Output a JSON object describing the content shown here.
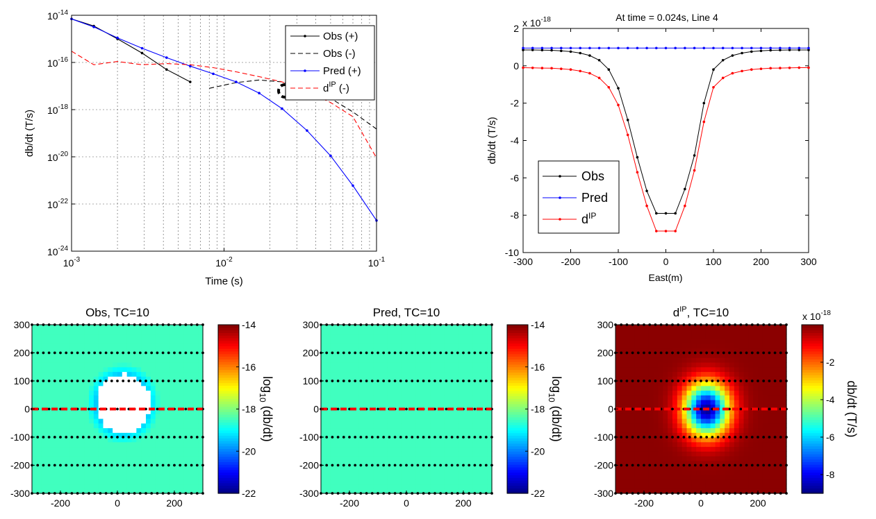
{
  "chart_data": [
    {
      "id": "decay",
      "type": "line",
      "xlabel": "Time (s)",
      "ylabel": "db/dt (T/s)",
      "xscale": "log",
      "yscale": "log",
      "xlim": [
        0.001,
        0.1
      ],
      "ylim": [
        1e-24,
        1e-14
      ],
      "x_ticks": [
        {
          "v": 0.001,
          "base": "10",
          "exp": "-3"
        },
        {
          "v": 0.01,
          "base": "10",
          "exp": "-2"
        },
        {
          "v": 0.1,
          "base": "10",
          "exp": "-1"
        }
      ],
      "y_ticks": [
        {
          "v": 1e-14,
          "base": "10",
          "exp": "-14"
        },
        {
          "v": 1e-16,
          "base": "10",
          "exp": "-16"
        },
        {
          "v": 1e-18,
          "base": "10",
          "exp": "-18"
        },
        {
          "v": 1e-20,
          "base": "10",
          "exp": "-20"
        },
        {
          "v": 1e-22,
          "base": "10",
          "exp": "-22"
        },
        {
          "v": 1e-24,
          "base": "10",
          "exp": "-24"
        }
      ],
      "grid": true,
      "legend_position": "top-right",
      "series": [
        {
          "name": "Obs (+)",
          "color": "#000000",
          "style": "solid",
          "marker": true,
          "points": [
            [
              0.001,
              7e-15
            ],
            [
              0.0014,
              3.5e-15
            ],
            [
              0.002,
              1e-15
            ],
            [
              0.0029,
              2.5e-16
            ],
            [
              0.0042,
              5e-17
            ],
            [
              0.006,
              1.5e-17
            ]
          ]
        },
        {
          "name": "Obs (-)",
          "color": "#000000",
          "style": "dashed",
          "marker": false,
          "points": [
            [
              0.008,
              8e-18
            ],
            [
              0.012,
              1.4e-17
            ],
            [
              0.017,
              1.8e-17
            ],
            [
              0.024,
              1.5e-17
            ],
            [
              0.035,
              8e-18
            ],
            [
              0.05,
              3e-18
            ],
            [
              0.07,
              8e-19
            ],
            [
              0.1,
              1.5e-19
            ]
          ]
        },
        {
          "name": "Pred (+)",
          "color": "#0000ff",
          "style": "solid",
          "marker": true,
          "points": [
            [
              0.001,
              7e-15
            ],
            [
              0.0014,
              3.2e-15
            ],
            [
              0.002,
              1.1e-15
            ],
            [
              0.0029,
              4e-16
            ],
            [
              0.0042,
              1.6e-16
            ],
            [
              0.006,
              7e-17
            ],
            [
              0.0085,
              3.3e-17
            ],
            [
              0.012,
              1.5e-17
            ],
            [
              0.017,
              5e-18
            ],
            [
              0.024,
              1.1e-18
            ],
            [
              0.035,
              1.3e-19
            ],
            [
              0.05,
              1.1e-20
            ],
            [
              0.07,
              6e-22
            ],
            [
              0.1,
              2e-23
            ]
          ]
        },
        {
          "name": "d",
          "name_sup": "IP",
          "name_suffix": " (-)",
          "color": "#ff0000",
          "style": "dashed",
          "marker": false,
          "points": [
            [
              0.001,
              3e-16
            ],
            [
              0.0014,
              8e-17
            ],
            [
              0.002,
              1.1e-16
            ],
            [
              0.0029,
              8e-17
            ],
            [
              0.0042,
              9e-17
            ],
            [
              0.006,
              8e-17
            ],
            [
              0.0085,
              6e-17
            ],
            [
              0.012,
              4e-17
            ],
            [
              0.017,
              2.5e-17
            ],
            [
              0.024,
              1.5e-17
            ],
            [
              0.035,
              6e-18
            ],
            [
              0.05,
              2e-18
            ],
            [
              0.07,
              5e-19
            ],
            [
              0.1,
              9e-21
            ]
          ]
        }
      ]
    },
    {
      "id": "profile",
      "type": "line",
      "title": "At time = 0.024s, Line 4",
      "xlabel": "East(m)",
      "ylabel": "db/dt (T/s)",
      "scale_note": {
        "base": "x 10",
        "exp": "-18"
      },
      "xlim": [
        -300,
        300
      ],
      "ylim": [
        -10,
        2
      ],
      "x_ticks": [
        -300,
        -200,
        -100,
        0,
        100,
        200,
        300
      ],
      "y_ticks": [
        2,
        0,
        -2,
        -4,
        -6,
        -8,
        -10
      ],
      "legend_position": "bottom-left",
      "x": [
        -300,
        -280,
        -260,
        -240,
        -220,
        -200,
        -180,
        -160,
        -140,
        -120,
        -100,
        -80,
        -60,
        -40,
        -20,
        0,
        20,
        40,
        60,
        80,
        100,
        120,
        140,
        160,
        180,
        200,
        220,
        240,
        260,
        280,
        300
      ],
      "series": [
        {
          "name": "Obs",
          "color": "#000000",
          "values": [
            0.85,
            0.85,
            0.84,
            0.83,
            0.8,
            0.76,
            0.68,
            0.55,
            0.3,
            -0.2,
            -1.2,
            -2.9,
            -4.9,
            -6.7,
            -7.9,
            -7.9,
            -7.9,
            -6.6,
            -4.8,
            -2.0,
            -0.2,
            0.3,
            0.55,
            0.68,
            0.76,
            0.8,
            0.83,
            0.84,
            0.85,
            0.85,
            0.85
          ]
        },
        {
          "name": "Pred",
          "color": "#0000ff",
          "values": [
            0.95,
            0.95,
            0.95,
            0.95,
            0.95,
            0.95,
            0.95,
            0.95,
            0.95,
            0.95,
            0.95,
            0.95,
            0.95,
            0.95,
            0.95,
            0.95,
            0.95,
            0.95,
            0.95,
            0.95,
            0.95,
            0.95,
            0.95,
            0.95,
            0.95,
            0.95,
            0.95,
            0.95,
            0.95,
            0.95,
            0.95
          ]
        },
        {
          "name": "d",
          "name_sup": "IP",
          "color": "#ff0000",
          "values": [
            -0.1,
            -0.11,
            -0.12,
            -0.13,
            -0.16,
            -0.2,
            -0.28,
            -0.4,
            -0.65,
            -1.15,
            -2.1,
            -3.7,
            -5.7,
            -7.5,
            -8.85,
            -8.85,
            -8.85,
            -7.5,
            -5.6,
            -3.0,
            -1.15,
            -0.65,
            -0.4,
            -0.28,
            -0.2,
            -0.16,
            -0.13,
            -0.12,
            -0.11,
            -0.1,
            -0.1
          ]
        }
      ]
    },
    {
      "id": "map-obs",
      "type": "heatmap",
      "title": "Obs, TC=10",
      "colormap": "jet",
      "xlim": [
        -300,
        300
      ],
      "ylim": [
        -300,
        300
      ],
      "x_ticks": [
        -200,
        0,
        200
      ],
      "y_ticks": [
        300,
        200,
        100,
        0,
        -100,
        -200,
        -300
      ],
      "background_value": -18.5,
      "anomaly": {
        "center": [
          20,
          20
        ],
        "radius": 130,
        "fill": "white",
        "inner_radius": 95
      },
      "colorbar": {
        "min": -22,
        "max": -14,
        "ticks": [
          -14,
          -16,
          -18,
          -20,
          -22
        ],
        "label_pre": "log",
        "label_sub": "10",
        "label_post": " (db/dt)"
      },
      "survey_lines_y": [
        300,
        200,
        100,
        0,
        -100,
        -200,
        -300
      ],
      "highlight_line_y": 0
    },
    {
      "id": "map-pred",
      "type": "heatmap",
      "title": "Pred, TC=10",
      "colormap": "jet",
      "xlim": [
        -300,
        300
      ],
      "ylim": [
        -300,
        300
      ],
      "x_ticks": [
        -200,
        0,
        200
      ],
      "y_ticks": [
        300,
        200,
        100,
        0,
        -100,
        -200,
        -300
      ],
      "background_value": -18.5,
      "colorbar": {
        "min": -22,
        "max": -14,
        "ticks": [
          -14,
          -16,
          -18,
          -20,
          -22
        ],
        "label_pre": "log",
        "label_sub": "10",
        "label_post": " (db/dt)"
      },
      "survey_lines_y": [
        300,
        200,
        100,
        0,
        -100,
        -200,
        -300
      ],
      "highlight_line_y": 0
    },
    {
      "id": "map-ip",
      "type": "heatmap",
      "title": "d",
      "title_sup": "IP",
      "title_suffix": ", TC=10",
      "colormap": "jet",
      "xlim": [
        -300,
        300
      ],
      "ylim": [
        -300,
        300
      ],
      "x_ticks": [
        -200,
        0,
        200
      ],
      "y_ticks": [
        300,
        200,
        100,
        0,
        -100,
        -200,
        -300
      ],
      "background_value": -0.1,
      "anomaly": {
        "center": [
          20,
          0
        ],
        "min_value": -8.8,
        "width": 55
      },
      "colorbar": {
        "min": -9,
        "max": 0,
        "ticks": [
          -2,
          -4,
          -6,
          -8
        ],
        "label": "db/dt (T/s)",
        "scale_base": "x 10",
        "scale_exp": "-18"
      },
      "survey_lines_y": [
        300,
        200,
        100,
        0,
        -100,
        -200,
        -300
      ],
      "highlight_line_y": 0
    }
  ]
}
